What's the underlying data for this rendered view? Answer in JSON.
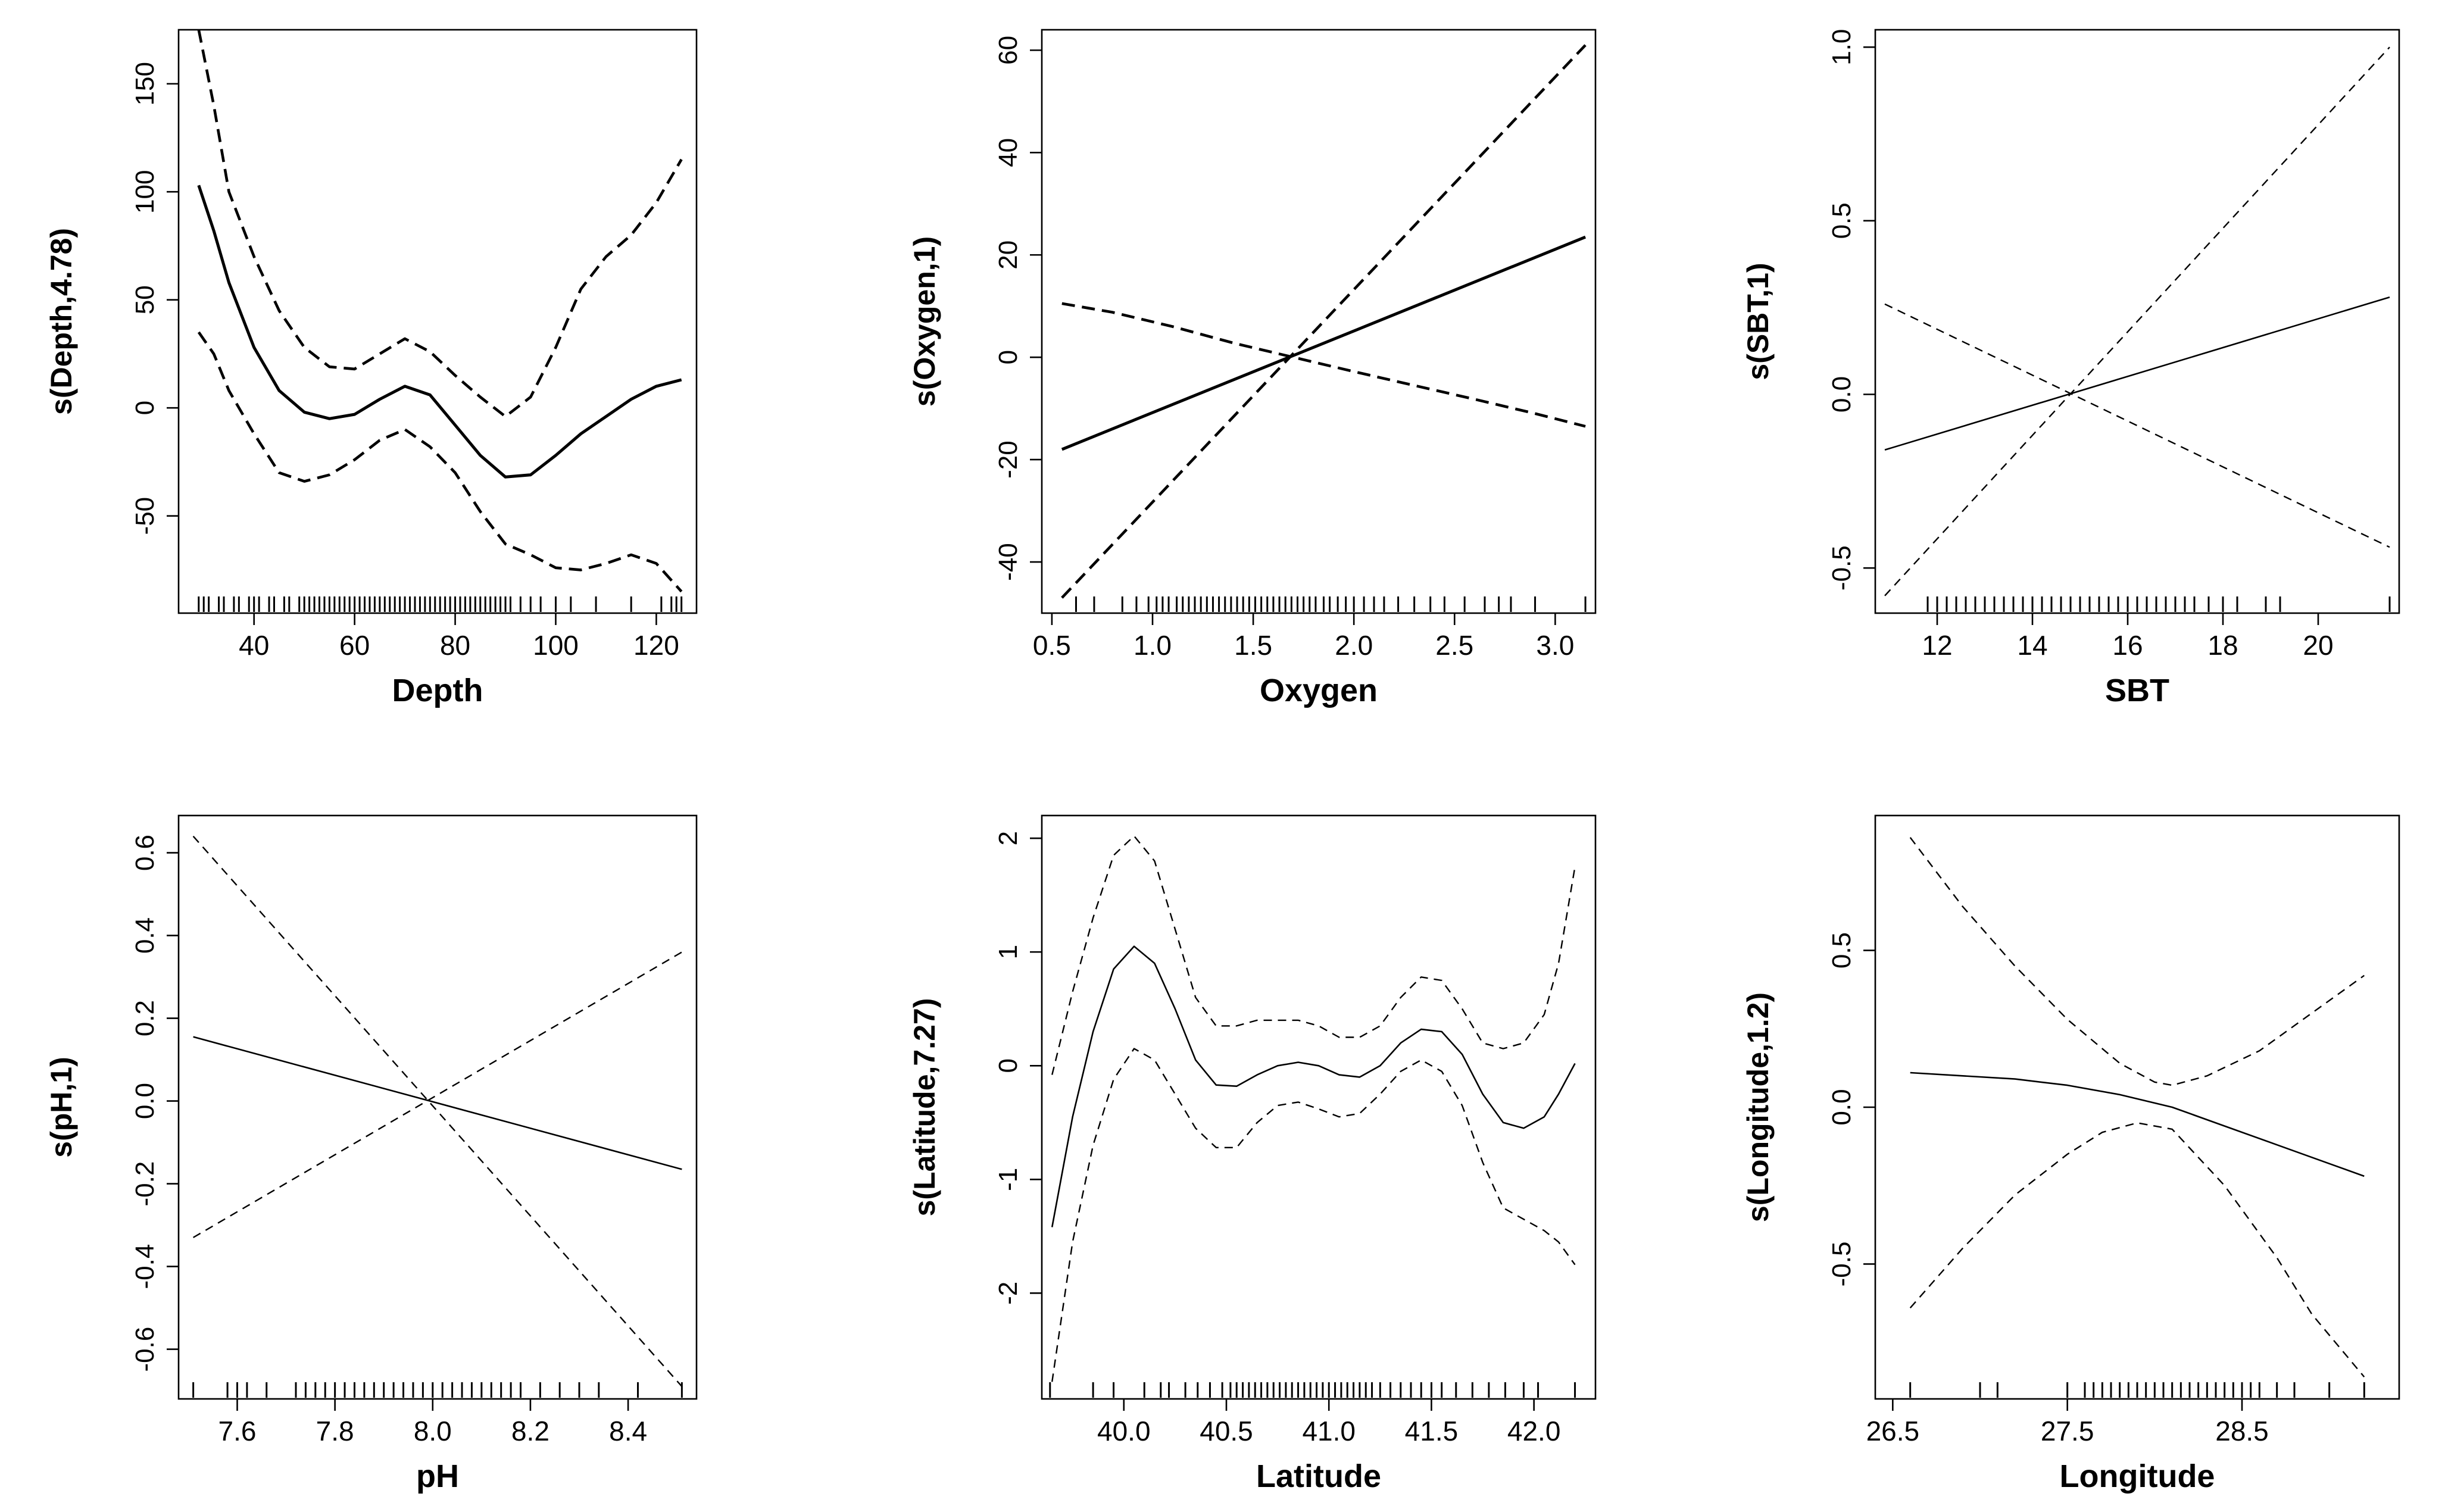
{
  "figure": {
    "description_visible": false
  },
  "chart_data": [
    {
      "type": "line",
      "xlabel": "Depth",
      "ylabel": "s(Depth,4.78)",
      "xlim": [
        25,
        128
      ],
      "ylim": [
        -95,
        175
      ],
      "xticks": [
        40,
        60,
        80,
        100,
        120
      ],
      "yticks": [
        -50,
        0,
        50,
        100,
        150
      ],
      "xtick_labels": [
        "40",
        "60",
        "80",
        "100",
        "120"
      ],
      "ytick_labels": [
        "-50",
        "0",
        "50",
        "100",
        "150"
      ],
      "style": "bold",
      "fit": [
        [
          29,
          103
        ],
        [
          32,
          82
        ],
        [
          35,
          58
        ],
        [
          40,
          28
        ],
        [
          45,
          8
        ],
        [
          50,
          -2
        ],
        [
          55,
          -5
        ],
        [
          60,
          -3
        ],
        [
          65,
          4
        ],
        [
          70,
          10
        ],
        [
          75,
          6
        ],
        [
          80,
          -8
        ],
        [
          85,
          -22
        ],
        [
          90,
          -32
        ],
        [
          95,
          -31
        ],
        [
          100,
          -22
        ],
        [
          105,
          -12
        ],
        [
          110,
          -4
        ],
        [
          115,
          4
        ],
        [
          120,
          10
        ],
        [
          125,
          13
        ]
      ],
      "upper": [
        [
          29,
          175
        ],
        [
          32,
          140
        ],
        [
          35,
          100
        ],
        [
          40,
          70
        ],
        [
          45,
          45
        ],
        [
          50,
          28
        ],
        [
          55,
          19
        ],
        [
          60,
          18
        ],
        [
          65,
          25
        ],
        [
          70,
          32
        ],
        [
          75,
          26
        ],
        [
          80,
          15
        ],
        [
          85,
          5
        ],
        [
          90,
          -4
        ],
        [
          95,
          5
        ],
        [
          100,
          28
        ],
        [
          105,
          55
        ],
        [
          110,
          70
        ],
        [
          115,
          80
        ],
        [
          120,
          95
        ],
        [
          125,
          115
        ]
      ],
      "lower": [
        [
          29,
          35
        ],
        [
          32,
          25
        ],
        [
          35,
          8
        ],
        [
          40,
          -12
        ],
        [
          45,
          -30
        ],
        [
          50,
          -34
        ],
        [
          55,
          -31
        ],
        [
          60,
          -24
        ],
        [
          65,
          -15
        ],
        [
          70,
          -10
        ],
        [
          75,
          -18
        ],
        [
          80,
          -30
        ],
        [
          85,
          -48
        ],
        [
          90,
          -63
        ],
        [
          95,
          -68
        ],
        [
          100,
          -74
        ],
        [
          105,
          -75
        ],
        [
          110,
          -72
        ],
        [
          115,
          -68
        ],
        [
          120,
          -72
        ],
        [
          125,
          -85
        ]
      ],
      "rug": [
        29,
        30,
        31,
        33,
        34,
        36,
        37,
        39,
        40,
        41,
        43,
        44,
        46,
        47,
        49,
        50,
        51,
        52,
        53,
        54,
        55,
        56,
        57,
        58,
        59,
        60,
        61,
        62,
        63,
        64,
        65,
        66,
        67,
        68,
        69,
        70,
        71,
        72,
        73,
        74,
        75,
        76,
        77,
        78,
        79,
        80,
        81,
        82,
        83,
        84,
        85,
        86,
        87,
        88,
        89,
        90,
        91,
        93,
        95,
        97,
        100,
        103,
        108,
        115,
        121,
        123,
        124,
        125
      ]
    },
    {
      "type": "line",
      "xlabel": "Oxygen",
      "ylabel": "s(Oxygen,1)",
      "xlim": [
        0.45,
        3.2
      ],
      "ylim": [
        -50,
        64
      ],
      "xticks": [
        0.5,
        1.0,
        1.5,
        2.0,
        2.5,
        3.0
      ],
      "yticks": [
        -40,
        -20,
        0,
        20,
        40,
        60
      ],
      "xtick_labels": [
        "0.5",
        "1.0",
        "1.5",
        "2.0",
        "2.5",
        "3.0"
      ],
      "ytick_labels": [
        "-40",
        "-20",
        "0",
        "20",
        "40",
        "60"
      ],
      "style": "bold",
      "fit": [
        [
          0.55,
          -18
        ],
        [
          3.15,
          23.5
        ]
      ],
      "upper": [
        [
          0.55,
          10.5
        ],
        [
          0.8,
          8.8
        ],
        [
          1.1,
          6
        ],
        [
          1.4,
          2.8
        ],
        [
          1.7,
          0
        ],
        [
          2.0,
          -2.8
        ],
        [
          2.3,
          -5.5
        ],
        [
          2.6,
          -8.2
        ],
        [
          2.9,
          -11
        ],
        [
          3.15,
          -13.5
        ]
      ],
      "lower": [
        [
          0.55,
          -47
        ],
        [
          3.15,
          61
        ]
      ],
      "rug": [
        0.62,
        0.71,
        0.85,
        0.92,
        0.98,
        1.02,
        1.05,
        1.08,
        1.12,
        1.15,
        1.18,
        1.21,
        1.24,
        1.27,
        1.3,
        1.33,
        1.36,
        1.39,
        1.42,
        1.45,
        1.48,
        1.51,
        1.54,
        1.57,
        1.6,
        1.63,
        1.66,
        1.69,
        1.72,
        1.75,
        1.78,
        1.81,
        1.85,
        1.88,
        1.92,
        1.96,
        2.0,
        2.05,
        2.1,
        2.15,
        2.22,
        2.3,
        2.38,
        2.45,
        2.55,
        2.65,
        2.72,
        2.78,
        2.9,
        3.15
      ]
    },
    {
      "type": "line",
      "xlabel": "SBT",
      "ylabel": "s(SBT,1)",
      "xlim": [
        10.7,
        21.7
      ],
      "ylim": [
        -0.63,
        1.05
      ],
      "xticks": [
        12,
        14,
        16,
        18,
        20
      ],
      "yticks": [
        -0.5,
        0.0,
        0.5,
        1.0
      ],
      "xtick_labels": [
        "12",
        "14",
        "16",
        "18",
        "20"
      ],
      "ytick_labels": [
        "-0.5",
        "0.0",
        "0.5",
        "1.0"
      ],
      "style": "thin",
      "fit": [
        [
          10.9,
          -0.16
        ],
        [
          21.5,
          0.28
        ]
      ],
      "upper": [
        [
          10.9,
          0.26
        ],
        [
          21.5,
          -0.44
        ]
      ],
      "lower": [
        [
          10.9,
          -0.58
        ],
        [
          21.5,
          1.0
        ]
      ],
      "rug": [
        11.8,
        12.0,
        12.2,
        12.4,
        12.6,
        12.8,
        13.0,
        13.2,
        13.4,
        13.6,
        13.8,
        14.0,
        14.2,
        14.4,
        14.6,
        14.8,
        15.0,
        15.2,
        15.4,
        15.6,
        15.8,
        16.0,
        16.2,
        16.4,
        16.6,
        16.8,
        17.0,
        17.2,
        17.4,
        17.7,
        18.0,
        18.3,
        18.9,
        19.2,
        21.5
      ]
    },
    {
      "type": "line",
      "xlabel": "pH",
      "ylabel": "s(pH,1)",
      "xlim": [
        7.48,
        8.54
      ],
      "ylim": [
        -0.72,
        0.69
      ],
      "xticks": [
        7.6,
        7.8,
        8.0,
        8.2,
        8.4
      ],
      "yticks": [
        -0.6,
        -0.4,
        -0.2,
        0.0,
        0.2,
        0.4,
        0.6
      ],
      "xtick_labels": [
        "7.6",
        "7.8",
        "8.0",
        "8.2",
        "8.4"
      ],
      "ytick_labels": [
        "-0.6",
        "-0.4",
        "-0.2",
        "0.0",
        "0.2",
        "0.4",
        "0.6"
      ],
      "style": "thin",
      "fit": [
        [
          7.51,
          0.155
        ],
        [
          8.51,
          -0.165
        ]
      ],
      "upper": [
        [
          7.51,
          -0.33
        ],
        [
          8.51,
          0.36
        ]
      ],
      "lower": [
        [
          7.51,
          0.64
        ],
        [
          8.51,
          -0.69
        ]
      ],
      "rug": [
        7.51,
        7.58,
        7.6,
        7.62,
        7.66,
        7.72,
        7.74,
        7.76,
        7.78,
        7.8,
        7.82,
        7.84,
        7.86,
        7.88,
        7.9,
        7.92,
        7.94,
        7.96,
        7.98,
        8.0,
        8.02,
        8.04,
        8.06,
        8.08,
        8.1,
        8.12,
        8.14,
        8.16,
        8.18,
        8.22,
        8.26,
        8.3,
        8.34,
        8.42,
        8.51
      ]
    },
    {
      "type": "line",
      "xlabel": "Latitude",
      "ylabel": "s(Latitude,7.27)",
      "xlim": [
        39.6,
        42.3
      ],
      "ylim": [
        -2.93,
        2.2
      ],
      "xticks": [
        40.0,
        40.5,
        41.0,
        41.5,
        42.0
      ],
      "yticks": [
        -2,
        -1,
        0,
        1,
        2
      ],
      "xtick_labels": [
        "40.0",
        "40.5",
        "41.0",
        "41.5",
        "42.0"
      ],
      "ytick_labels": [
        "-2",
        "-1",
        "0",
        "1",
        "2"
      ],
      "style": "thin",
      "fit": [
        [
          39.65,
          -1.42
        ],
        [
          39.75,
          -0.45
        ],
        [
          39.85,
          0.3
        ],
        [
          39.95,
          0.85
        ],
        [
          40.05,
          1.05
        ],
        [
          40.15,
          0.9
        ],
        [
          40.25,
          0.5
        ],
        [
          40.35,
          0.05
        ],
        [
          40.45,
          -0.17
        ],
        [
          40.55,
          -0.18
        ],
        [
          40.65,
          -0.08
        ],
        [
          40.75,
          0.0
        ],
        [
          40.85,
          0.03
        ],
        [
          40.95,
          0.0
        ],
        [
          41.05,
          -0.08
        ],
        [
          41.15,
          -0.1
        ],
        [
          41.25,
          0.0
        ],
        [
          41.35,
          0.2
        ],
        [
          41.45,
          0.32
        ],
        [
          41.55,
          0.3
        ],
        [
          41.65,
          0.1
        ],
        [
          41.75,
          -0.25
        ],
        [
          41.85,
          -0.5
        ],
        [
          41.95,
          -0.55
        ],
        [
          42.05,
          -0.45
        ],
        [
          42.12,
          -0.25
        ],
        [
          42.2,
          0.02
        ]
      ],
      "upper": [
        [
          39.65,
          -0.08
        ],
        [
          39.75,
          0.65
        ],
        [
          39.85,
          1.3
        ],
        [
          39.95,
          1.85
        ],
        [
          40.05,
          2.02
        ],
        [
          40.15,
          1.8
        ],
        [
          40.25,
          1.2
        ],
        [
          40.35,
          0.6
        ],
        [
          40.45,
          0.35
        ],
        [
          40.55,
          0.35
        ],
        [
          40.65,
          0.4
        ],
        [
          40.75,
          0.4
        ],
        [
          40.85,
          0.4
        ],
        [
          40.95,
          0.35
        ],
        [
          41.05,
          0.25
        ],
        [
          41.15,
          0.25
        ],
        [
          41.25,
          0.35
        ],
        [
          41.35,
          0.6
        ],
        [
          41.45,
          0.78
        ],
        [
          41.55,
          0.75
        ],
        [
          41.65,
          0.5
        ],
        [
          41.75,
          0.2
        ],
        [
          41.85,
          0.15
        ],
        [
          41.95,
          0.2
        ],
        [
          42.05,
          0.45
        ],
        [
          42.12,
          0.9
        ],
        [
          42.2,
          1.75
        ]
      ],
      "lower": [
        [
          39.65,
          -2.78
        ],
        [
          39.75,
          -1.55
        ],
        [
          39.85,
          -0.7
        ],
        [
          39.95,
          -0.12
        ],
        [
          40.05,
          0.15
        ],
        [
          40.15,
          0.05
        ],
        [
          40.25,
          -0.25
        ],
        [
          40.35,
          -0.55
        ],
        [
          40.45,
          -0.72
        ],
        [
          40.55,
          -0.72
        ],
        [
          40.65,
          -0.5
        ],
        [
          40.75,
          -0.35
        ],
        [
          40.85,
          -0.32
        ],
        [
          40.95,
          -0.38
        ],
        [
          41.05,
          -0.45
        ],
        [
          41.15,
          -0.42
        ],
        [
          41.25,
          -0.25
        ],
        [
          41.35,
          -0.05
        ],
        [
          41.45,
          0.05
        ],
        [
          41.55,
          -0.05
        ],
        [
          41.65,
          -0.35
        ],
        [
          41.75,
          -0.85
        ],
        [
          41.85,
          -1.25
        ],
        [
          41.95,
          -1.35
        ],
        [
          42.05,
          -1.45
        ],
        [
          42.12,
          -1.55
        ],
        [
          42.2,
          -1.75
        ]
      ],
      "rug": [
        39.64,
        39.85,
        39.95,
        40.1,
        40.18,
        40.22,
        40.3,
        40.36,
        40.42,
        40.48,
        40.52,
        40.55,
        40.58,
        40.61,
        40.64,
        40.67,
        40.7,
        40.73,
        40.76,
        40.79,
        40.82,
        40.85,
        40.88,
        40.91,
        40.94,
        40.97,
        41.0,
        41.03,
        41.06,
        41.09,
        41.12,
        41.15,
        41.18,
        41.21,
        41.25,
        41.3,
        41.35,
        41.4,
        41.45,
        41.5,
        41.55,
        41.62,
        41.7,
        41.78,
        41.86,
        41.95,
        42.02,
        42.2
      ]
    },
    {
      "type": "line",
      "xlabel": "Longitude",
      "ylabel": "s(Longitude,1.2)",
      "xlim": [
        26.4,
        29.4
      ],
      "ylim": [
        -0.93,
        0.93
      ],
      "xticks": [
        26.5,
        27.5,
        28.5
      ],
      "yticks": [
        -0.5,
        0.0,
        0.5
      ],
      "xtick_labels": [
        "26.5",
        "27.5",
        "28.5"
      ],
      "ytick_labels": [
        "-0.5",
        "0.0",
        "0.5"
      ],
      "style": "thin",
      "fit": [
        [
          26.6,
          0.11
        ],
        [
          26.9,
          0.1
        ],
        [
          27.2,
          0.09
        ],
        [
          27.5,
          0.07
        ],
        [
          27.8,
          0.04
        ],
        [
          28.1,
          0.0
        ],
        [
          28.4,
          -0.06
        ],
        [
          28.7,
          -0.12
        ],
        [
          29.0,
          -0.18
        ],
        [
          29.2,
          -0.22
        ]
      ],
      "upper": [
        [
          26.6,
          0.86
        ],
        [
          26.9,
          0.64
        ],
        [
          27.2,
          0.45
        ],
        [
          27.5,
          0.28
        ],
        [
          27.8,
          0.14
        ],
        [
          28.0,
          0.08
        ],
        [
          28.1,
          0.07
        ],
        [
          28.3,
          0.1
        ],
        [
          28.6,
          0.18
        ],
        [
          28.9,
          0.3
        ],
        [
          29.2,
          0.42
        ]
      ],
      "lower": [
        [
          26.6,
          -0.64
        ],
        [
          26.9,
          -0.45
        ],
        [
          27.2,
          -0.28
        ],
        [
          27.5,
          -0.15
        ],
        [
          27.7,
          -0.08
        ],
        [
          27.9,
          -0.05
        ],
        [
          28.1,
          -0.07
        ],
        [
          28.4,
          -0.25
        ],
        [
          28.7,
          -0.48
        ],
        [
          28.9,
          -0.66
        ],
        [
          29.2,
          -0.86
        ]
      ],
      "rug": [
        26.6,
        27.0,
        27.1,
        27.5,
        27.6,
        27.65,
        27.7,
        27.75,
        27.8,
        27.85,
        27.9,
        27.95,
        28.0,
        28.05,
        28.1,
        28.15,
        28.2,
        28.25,
        28.3,
        28.35,
        28.4,
        28.45,
        28.5,
        28.55,
        28.6,
        28.7,
        28.8,
        29.0,
        29.2
      ]
    }
  ]
}
